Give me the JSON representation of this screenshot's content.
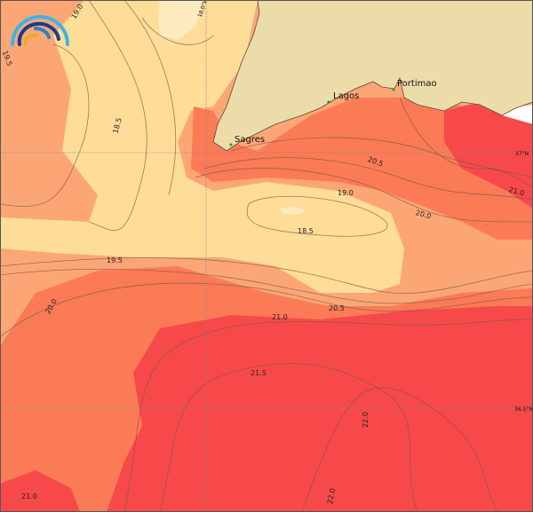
{
  "map": {
    "variable_levels": [
      "18.0",
      "18.5",
      "19.0",
      "19.5",
      "20.0",
      "20.5",
      "21.0",
      "21.5",
      "22.0"
    ],
    "colors": {
      "land": "#ecdcaa",
      "t_lt_18_5": "#feeabf",
      "t_18_5_19_5": "#fedd98",
      "t_19_5_20_0": "#fca676",
      "t_20_0_21_0": "#fb7b56",
      "t_gt_21_0": "#f8494a",
      "no_data": "#ffffff"
    },
    "places": [
      {
        "name": "Sagres"
      },
      {
        "name": "Lagos"
      },
      {
        "name": "Portimao"
      }
    ],
    "grid_labels": {
      "lon": "18.0°W",
      "lat1": "37°N",
      "lat2": "36.5°N"
    },
    "contour_labels": [
      "19.0",
      "19.5",
      "18.5",
      "20.5",
      "19.0",
      "18.5",
      "20.0",
      "21.0",
      "19.5",
      "20.0",
      "20.5",
      "21.0",
      "21.5",
      "22.0",
      "22.0",
      "21.0"
    ],
    "logo": "wave-arcs-logo"
  }
}
